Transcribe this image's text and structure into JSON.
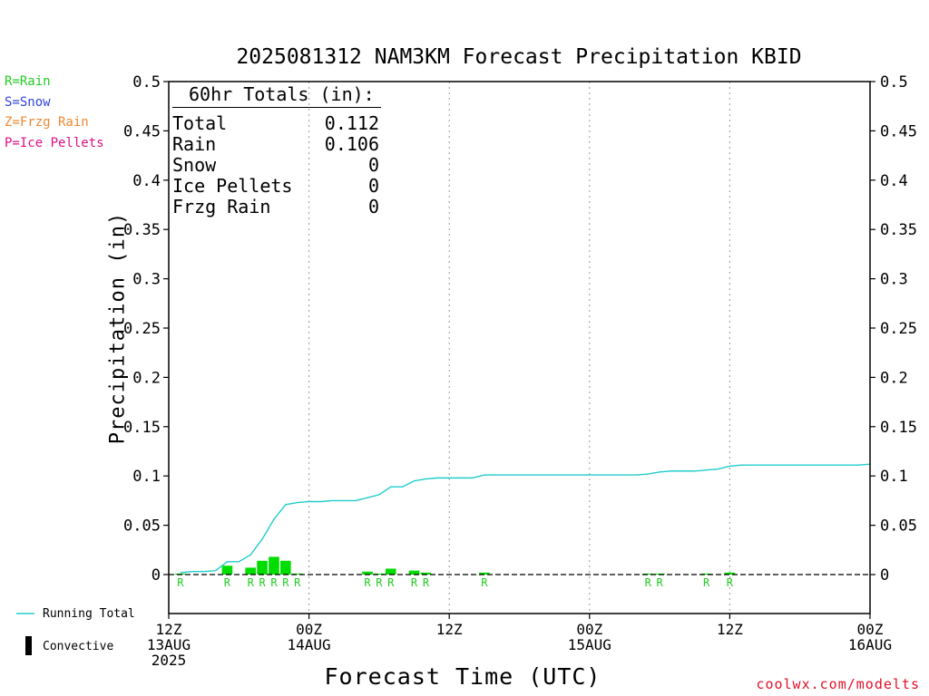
{
  "title": "2025081312 NAM3KM Forecast Precipitation KBID",
  "precip_type_legend": [
    {
      "label": "R=Rain",
      "color": "#22cc22"
    },
    {
      "label": "S=Snow",
      "color": "#3344dd"
    },
    {
      "label": "Z=Frzg Rain",
      "color": "#ee8833"
    },
    {
      "label": "P=Ice Pellets",
      "color": "#dd1188"
    }
  ],
  "totals_box": {
    "heading": "60hr Totals (in):",
    "rows": [
      {
        "label": "Total",
        "value": "0.112"
      },
      {
        "label": "Rain",
        "value": "0.106"
      },
      {
        "label": "Snow",
        "value": "0"
      },
      {
        "label": "Ice Pellets",
        "value": "0"
      },
      {
        "label": "Frzg Rain",
        "value": "0"
      }
    ]
  },
  "bottom_legend": {
    "running_total_label": "Running Total",
    "convective_label": "Convective"
  },
  "credit": "coolwx.com/modelts",
  "colors": {
    "running_total": "#22cccc",
    "rain_bar": "#00dd00",
    "rain_marker": "#22cc22",
    "grid": "#999999"
  },
  "chart_data": {
    "type": "bar",
    "xlabel": "Forecast Time (UTC)",
    "ylabel": "Precipitation (in)",
    "ylim": [
      0,
      0.5
    ],
    "xlim_hours": [
      0,
      60
    ],
    "x_unit": "forecast hours",
    "y_ticks": [
      "0",
      "0.05",
      "0.1",
      "0.15",
      "0.2",
      "0.25",
      "0.3",
      "0.35",
      "0.4",
      "0.45",
      "0.5"
    ],
    "x_ticks": [
      {
        "hour": 0,
        "lines": [
          "12Z",
          "13AUG",
          "2025"
        ]
      },
      {
        "hour": 12,
        "lines": [
          "00Z",
          "14AUG"
        ]
      },
      {
        "hour": 24,
        "lines": [
          "12Z"
        ]
      },
      {
        "hour": 36,
        "lines": [
          "00Z",
          "15AUG"
        ]
      },
      {
        "hour": 48,
        "lines": [
          "12Z"
        ]
      },
      {
        "hour": 60,
        "lines": [
          "00Z",
          "16AUG"
        ]
      }
    ],
    "grid_vertical_hours": [
      12,
      24,
      36,
      48
    ],
    "hourly_precip": [
      {
        "hour": 1,
        "value": 0.001,
        "ptype": "R"
      },
      {
        "hour": 5,
        "value": 0.009,
        "ptype": "R"
      },
      {
        "hour": 7,
        "value": 0.007,
        "ptype": "R"
      },
      {
        "hour": 8,
        "value": 0.014,
        "ptype": "R"
      },
      {
        "hour": 9,
        "value": 0.018,
        "ptype": "R"
      },
      {
        "hour": 10,
        "value": 0.014,
        "ptype": "R"
      },
      {
        "hour": 11,
        "value": 0.001,
        "ptype": "R"
      },
      {
        "hour": 17,
        "value": 0.003,
        "ptype": "R"
      },
      {
        "hour": 18,
        "value": 0.001,
        "ptype": "R"
      },
      {
        "hour": 19,
        "value": 0.006,
        "ptype": "R"
      },
      {
        "hour": 21,
        "value": 0.004,
        "ptype": "R"
      },
      {
        "hour": 22,
        "value": 0.002,
        "ptype": "R"
      },
      {
        "hour": 27,
        "value": 0.002,
        "ptype": "R"
      },
      {
        "hour": 41,
        "value": 0.001,
        "ptype": "R"
      },
      {
        "hour": 42,
        "value": 0.001,
        "ptype": "R"
      },
      {
        "hour": 46,
        "value": 0.001,
        "ptype": "R"
      },
      {
        "hour": 48,
        "value": 0.002,
        "ptype": "R"
      }
    ],
    "running_total": {
      "name": "Running Total",
      "hours": [
        1,
        2,
        3,
        4,
        5,
        6,
        7,
        8,
        9,
        10,
        11,
        12,
        13,
        14,
        15,
        16,
        17,
        18,
        19,
        20,
        21,
        22,
        23,
        24,
        25,
        26,
        27,
        28,
        29,
        30,
        31,
        32,
        33,
        34,
        35,
        36,
        37,
        38,
        39,
        40,
        41,
        42,
        43,
        44,
        45,
        46,
        47,
        48,
        49,
        50,
        51,
        52,
        53,
        54,
        55,
        56,
        57,
        58,
        59,
        60
      ],
      "values": [
        0.002,
        0.003,
        0.003,
        0.004,
        0.013,
        0.013,
        0.02,
        0.036,
        0.056,
        0.071,
        0.073,
        0.074,
        0.074,
        0.075,
        0.075,
        0.075,
        0.078,
        0.081,
        0.089,
        0.089,
        0.095,
        0.097,
        0.098,
        0.098,
        0.098,
        0.098,
        0.101,
        0.101,
        0.101,
        0.101,
        0.101,
        0.101,
        0.101,
        0.101,
        0.101,
        0.101,
        0.101,
        0.101,
        0.101,
        0.101,
        0.102,
        0.104,
        0.105,
        0.105,
        0.105,
        0.106,
        0.107,
        0.11,
        0.111,
        0.111,
        0.111,
        0.111,
        0.111,
        0.111,
        0.111,
        0.111,
        0.111,
        0.111,
        0.111,
        0.112
      ]
    }
  }
}
